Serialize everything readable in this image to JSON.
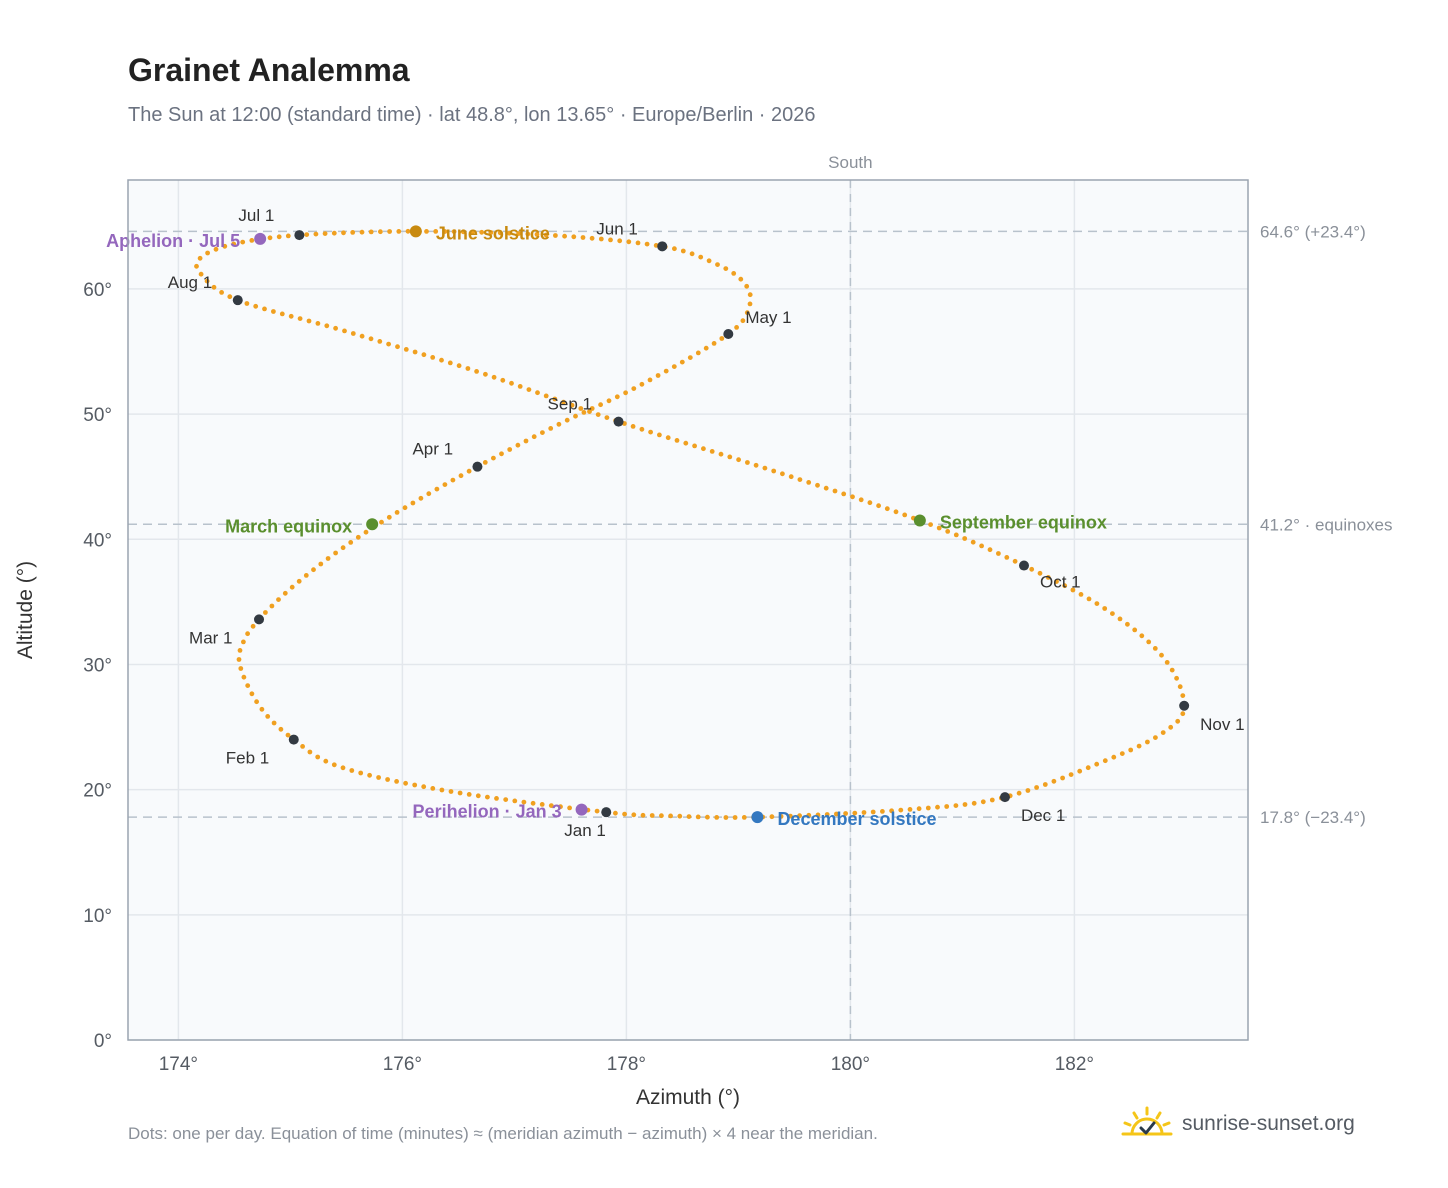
{
  "header": {
    "title": "Grainet Analemma",
    "subtitle": "The Sun at 12:00 (standard time) · lat 48.8°, lon 13.65° · Europe/Berlin · 2026"
  },
  "footer": {
    "note": "Dots: one per day. Equation of time (minutes) ≈ (meridian azimuth − azimuth) × 4 near the meridian.",
    "brand": "sunrise-sunset.org"
  },
  "colors": {
    "path": "#f0a020",
    "month_dot": "#333a42",
    "june_solstice": "#c88a10",
    "december_solstice": "#3478c0",
    "equinox": "#5a8f2e",
    "apsis": "#9467bd",
    "grid": "#e3e7ec",
    "plot_bg": "#f8fafc",
    "reference": "#b8c2cc"
  },
  "chart_data": {
    "type": "scatter",
    "xlabel": "Azimuth (°)",
    "ylabel": "Altitude (°)",
    "xlim": [
      173.55,
      183.55
    ],
    "ylim": [
      0,
      68.7
    ],
    "xticks": [
      {
        "value": 174,
        "label": "174°"
      },
      {
        "value": 176,
        "label": "176°"
      },
      {
        "value": 178,
        "label": "178°"
      },
      {
        "value": 180,
        "label": "180°"
      },
      {
        "value": 182,
        "label": "182°"
      }
    ],
    "yticks": [
      {
        "value": 0,
        "label": "0°"
      },
      {
        "value": 10,
        "label": "10°"
      },
      {
        "value": 20,
        "label": "20°"
      },
      {
        "value": 30,
        "label": "30°"
      },
      {
        "value": 40,
        "label": "40°"
      },
      {
        "value": 50,
        "label": "50°"
      },
      {
        "value": 60,
        "label": "60°"
      }
    ],
    "grid": true,
    "meridian": {
      "azimuth": 180,
      "label": "South"
    },
    "reference_lines": [
      {
        "altitude": 64.6,
        "label": "64.6° (+23.4°)"
      },
      {
        "altitude": 41.2,
        "label": "41.2° · equinoxes"
      },
      {
        "altitude": 17.8,
        "label": "17.8° (−23.4°)"
      }
    ],
    "month_markers": [
      {
        "label": "Jan 1",
        "azimuth": 177.82,
        "altitude": 18.2
      },
      {
        "label": "Feb 1",
        "azimuth": 175.03,
        "altitude": 24.0
      },
      {
        "label": "Mar 1",
        "azimuth": 174.72,
        "altitude": 33.6
      },
      {
        "label": "Apr 1",
        "azimuth": 176.67,
        "altitude": 45.8
      },
      {
        "label": "May 1",
        "azimuth": 178.91,
        "altitude": 56.4
      },
      {
        "label": "Jun 1",
        "azimuth": 178.32,
        "altitude": 63.4
      },
      {
        "label": "Jul 1",
        "azimuth": 175.08,
        "altitude": 64.3
      },
      {
        "label": "Aug 1",
        "azimuth": 174.53,
        "altitude": 59.1
      },
      {
        "label": "Sep 1",
        "azimuth": 177.93,
        "altitude": 49.4
      },
      {
        "label": "Oct 1",
        "azimuth": 181.55,
        "altitude": 37.9
      },
      {
        "label": "Nov 1",
        "azimuth": 182.98,
        "altitude": 26.7
      },
      {
        "label": "Dec 1",
        "azimuth": 181.38,
        "altitude": 19.4
      }
    ],
    "events": [
      {
        "label": "June solstice",
        "azimuth": 176.12,
        "altitude": 64.6,
        "color": "#c88a10"
      },
      {
        "label": "December solstice",
        "azimuth": 179.17,
        "altitude": 17.8,
        "color": "#3478c0"
      },
      {
        "label": "March equinox",
        "azimuth": 175.73,
        "altitude": 41.2,
        "color": "#5a8f2e"
      },
      {
        "label": "September equinox",
        "azimuth": 180.62,
        "altitude": 41.5,
        "color": "#5a8f2e"
      },
      {
        "label": "Aphelion · Jul 5",
        "azimuth": 174.73,
        "altitude": 64.0,
        "color": "#9467bd"
      },
      {
        "label": "Perihelion · Jan 3",
        "azimuth": 177.6,
        "altitude": 18.4,
        "color": "#9467bd"
      }
    ],
    "path_waypoints": [
      {
        "azimuth": 177.82,
        "altitude": 18.2
      },
      {
        "azimuth": 176.4,
        "altitude": 19.9
      },
      {
        "azimuth": 175.45,
        "altitude": 21.8
      },
      {
        "azimuth": 175.03,
        "altitude": 24.0
      },
      {
        "azimuth": 174.73,
        "altitude": 26.6
      },
      {
        "azimuth": 174.55,
        "altitude": 29.9
      },
      {
        "azimuth": 174.58,
        "altitude": 31.8
      },
      {
        "azimuth": 174.72,
        "altitude": 33.6
      },
      {
        "azimuth": 175.02,
        "altitude": 36.2
      },
      {
        "azimuth": 175.45,
        "altitude": 39.2
      },
      {
        "azimuth": 176.0,
        "altitude": 42.4
      },
      {
        "azimuth": 176.67,
        "altitude": 45.8
      },
      {
        "azimuth": 177.4,
        "altitude": 49.2
      },
      {
        "azimuth": 178.1,
        "altitude": 52.2
      },
      {
        "azimuth": 178.91,
        "altitude": 56.4
      },
      {
        "azimuth": 179.1,
        "altitude": 58.7
      },
      {
        "azimuth": 179.05,
        "altitude": 60.5
      },
      {
        "azimuth": 178.8,
        "altitude": 62.0
      },
      {
        "azimuth": 178.32,
        "altitude": 63.4
      },
      {
        "azimuth": 177.3,
        "altitude": 64.3
      },
      {
        "azimuth": 176.12,
        "altitude": 64.6
      },
      {
        "azimuth": 175.08,
        "altitude": 64.3
      },
      {
        "azimuth": 174.5,
        "altitude": 63.6
      },
      {
        "azimuth": 174.2,
        "altitude": 62.5
      },
      {
        "azimuth": 174.2,
        "altitude": 61.2
      },
      {
        "azimuth": 174.53,
        "altitude": 59.1
      },
      {
        "azimuth": 175.5,
        "altitude": 56.6
      },
      {
        "azimuth": 176.7,
        "altitude": 53.3
      },
      {
        "azimuth": 177.93,
        "altitude": 49.4
      },
      {
        "azimuth": 179.3,
        "altitude": 45.5
      },
      {
        "azimuth": 180.62,
        "altitude": 41.5
      },
      {
        "azimuth": 181.55,
        "altitude": 37.9
      },
      {
        "azimuth": 182.3,
        "altitude": 34.3
      },
      {
        "azimuth": 182.8,
        "altitude": 30.5
      },
      {
        "azimuth": 182.98,
        "altitude": 26.7
      },
      {
        "azimuth": 182.8,
        "altitude": 24.6
      },
      {
        "azimuth": 182.3,
        "altitude": 22.4
      },
      {
        "azimuth": 181.38,
        "altitude": 19.4
      },
      {
        "azimuth": 180.5,
        "altitude": 18.4
      },
      {
        "azimuth": 179.17,
        "altitude": 17.8
      },
      {
        "azimuth": 178.4,
        "altitude": 17.9
      },
      {
        "azimuth": 177.82,
        "altitude": 18.2
      }
    ]
  }
}
